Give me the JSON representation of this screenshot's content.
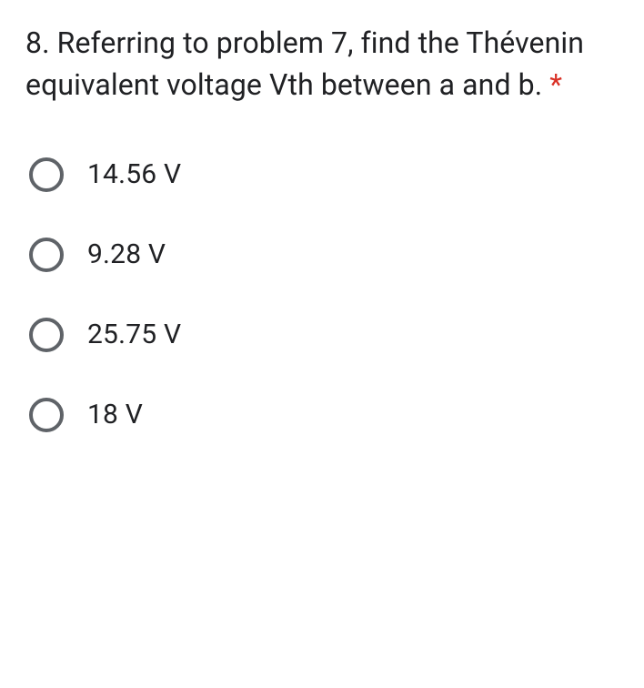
{
  "question": {
    "text": "8. Referring to problem 7, find the Thévenin equivalent voltage Vth between a and b.",
    "required_marker": "*",
    "required_color": "#d93025"
  },
  "options": [
    {
      "label": "14.56 V",
      "selected": false
    },
    {
      "label": "9.28 V",
      "selected": false
    },
    {
      "label": "25.75 V",
      "selected": false
    },
    {
      "label": "18 V",
      "selected": false
    }
  ],
  "styling": {
    "background_color": "#ffffff",
    "text_color": "#202124",
    "radio_border_color": "#5f6368",
    "question_fontsize": 32,
    "option_fontsize": 30,
    "radio_size": 38,
    "radio_border_width": 4
  }
}
